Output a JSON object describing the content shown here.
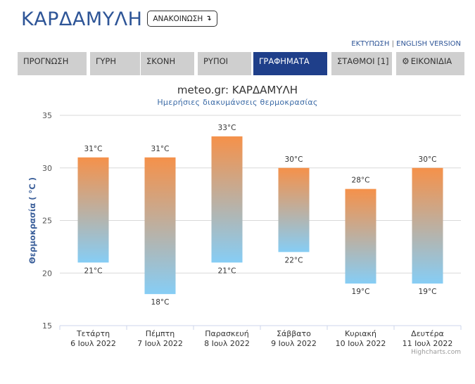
{
  "header": {
    "title": "ΚΑΡΔΑΜΥΛΗ",
    "announce_label": "ΑΝΑΚΟΙΝΩΣΗ",
    "announce_icon": "↴"
  },
  "links": {
    "print": "ΕΚΤΥΠΩΣΗ",
    "separator": "|",
    "english": "ENGLISH VERSION"
  },
  "tabs": [
    {
      "label": "ΠΡΟΓΝΩΣΗ",
      "active": false
    },
    {
      "label": "ΓΥΡΗ",
      "active": false
    },
    {
      "label": "ΣΚΟΝΗ",
      "active": false
    },
    {
      "label": "ΡΥΠΟΙ",
      "active": false
    },
    {
      "label": "ΓΡΑΦΗΜΑΤΑ",
      "active": true
    },
    {
      "label": "ΣΤΑΘΜΟΙ [1]",
      "active": false
    },
    {
      "label": "ΕΙΚΟΝΙΔΙΑ",
      "active": false,
      "icon": "gear-icon"
    }
  ],
  "colors": {
    "accent": "#1f3f8a",
    "title": "#2e5597",
    "bar_top": "#f5914a",
    "bar_bottom": "#86cdf5"
  },
  "chart_data": {
    "type": "bar",
    "title": "meteo.gr: ΚΑΡΔΑΜΥΛΗ",
    "subtitle": "Ημερήσιες διακυμάνσεις θερμοκρασίας",
    "ylabel": "Θερμοκρασία ( °C )",
    "ylim": [
      15,
      35
    ],
    "yticks": [
      15,
      20,
      25,
      30,
      35
    ],
    "grid": true,
    "categories": [
      {
        "day": "Τετάρτη",
        "date": "6 Ιουλ 2022"
      },
      {
        "day": "Πέμπτη",
        "date": "7 Ιουλ 2022"
      },
      {
        "day": "Παρασκευή",
        "date": "8 Ιουλ 2022"
      },
      {
        "day": "Σάββατο",
        "date": "9 Ιουλ 2022"
      },
      {
        "day": "Κυριακή",
        "date": "10 Ιουλ 2022"
      },
      {
        "day": "Δευτέρα",
        "date": "11 Ιουλ 2022"
      }
    ],
    "series": [
      {
        "low": 21,
        "high": 31
      },
      {
        "low": 18,
        "high": 31
      },
      {
        "low": 21,
        "high": 33
      },
      {
        "low": 22,
        "high": 30
      },
      {
        "low": 19,
        "high": 28
      },
      {
        "low": 19,
        "high": 30
      }
    ],
    "unit": "°C",
    "credits": "Highcharts.com"
  }
}
